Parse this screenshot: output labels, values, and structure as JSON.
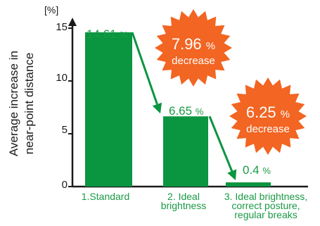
{
  "chart_data": {
    "type": "bar",
    "unit_label": "[%]",
    "ylabel": [
      "Average increase in",
      "near-point distance"
    ],
    "ylim": [
      0,
      15
    ],
    "yticks": [
      "0",
      "5",
      "10",
      "15"
    ],
    "categories": [
      [
        "1.Standard"
      ],
      [
        "2. Ideal",
        "brightness"
      ],
      [
        "3. Ideal brightness,",
        "correct posture,",
        "regular breaks"
      ]
    ],
    "values": [
      14.61,
      6.65,
      0.4
    ],
    "value_labels": [
      {
        "num": "14.61",
        "unit": "%"
      },
      {
        "num": "6.65",
        "unit": "%"
      },
      {
        "num": "0.4",
        "unit": "%"
      }
    ],
    "annotations": [
      {
        "value": "7.96",
        "unit": "%",
        "text": "decrease"
      },
      {
        "value": "6.25",
        "unit": "%",
        "text": "decrease"
      }
    ],
    "grid": false,
    "colors": {
      "bar": "#0a9540",
      "burst": "#f26522",
      "text_green": "#1a9a45"
    }
  }
}
